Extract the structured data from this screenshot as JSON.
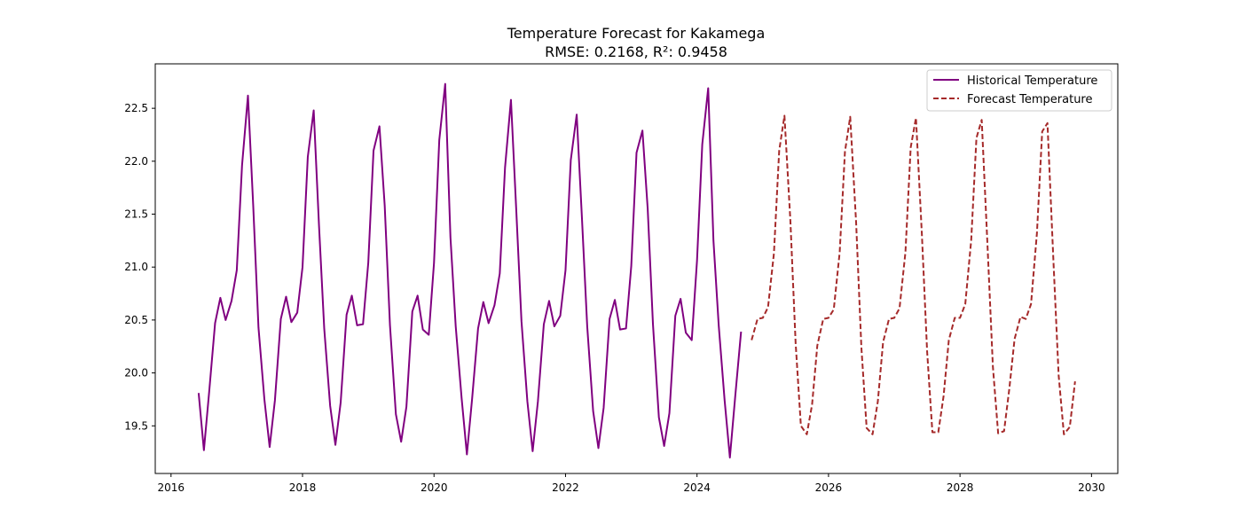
{
  "chart_data": {
    "type": "line",
    "title": "Temperature Forecast for Kakamega",
    "subtitle": "RMSE: 0.2168, R²: 0.9458",
    "xlabel": "",
    "ylabel": "",
    "xlim": [
      2015.76,
      2030.4
    ],
    "ylim": [
      19.05,
      22.92
    ],
    "xticks": [
      "2016",
      "2018",
      "2020",
      "2022",
      "2024",
      "2026",
      "2028",
      "2030"
    ],
    "yticks": [
      "19.5",
      "20.0",
      "20.5",
      "21.0",
      "21.5",
      "22.0",
      "22.5"
    ],
    "grid": false,
    "legend_position": "top-right",
    "series": [
      {
        "name": "Historical Temperature",
        "color": "#800080",
        "dash": "solid",
        "points": [
          [
            2016.42,
            19.81
          ],
          [
            2016.5,
            19.27
          ],
          [
            2016.58,
            19.82
          ],
          [
            2016.67,
            20.47
          ],
          [
            2016.75,
            20.71
          ],
          [
            2016.83,
            20.5
          ],
          [
            2016.92,
            20.68
          ],
          [
            2017.0,
            20.97
          ],
          [
            2017.08,
            21.96
          ],
          [
            2017.17,
            22.62
          ],
          [
            2017.25,
            21.58
          ],
          [
            2017.33,
            20.43
          ],
          [
            2017.42,
            19.75
          ],
          [
            2017.5,
            19.3
          ],
          [
            2017.58,
            19.74
          ],
          [
            2017.67,
            20.51
          ],
          [
            2017.75,
            20.72
          ],
          [
            2017.83,
            20.48
          ],
          [
            2017.92,
            20.57
          ],
          [
            2018.0,
            21.0
          ],
          [
            2018.08,
            22.04
          ],
          [
            2018.17,
            22.48
          ],
          [
            2018.25,
            21.4
          ],
          [
            2018.33,
            20.42
          ],
          [
            2018.42,
            19.69
          ],
          [
            2018.5,
            19.32
          ],
          [
            2018.58,
            19.72
          ],
          [
            2018.67,
            20.55
          ],
          [
            2018.75,
            20.73
          ],
          [
            2018.83,
            20.45
          ],
          [
            2018.92,
            20.46
          ],
          [
            2019.0,
            21.04
          ],
          [
            2019.08,
            22.1
          ],
          [
            2019.17,
            22.33
          ],
          [
            2019.25,
            21.58
          ],
          [
            2019.33,
            20.45
          ],
          [
            2019.42,
            19.61
          ],
          [
            2019.5,
            19.35
          ],
          [
            2019.58,
            19.68
          ],
          [
            2019.67,
            20.58
          ],
          [
            2019.75,
            20.73
          ],
          [
            2019.83,
            20.41
          ],
          [
            2019.92,
            20.36
          ],
          [
            2020.0,
            21.04
          ],
          [
            2020.08,
            22.2
          ],
          [
            2020.17,
            22.73
          ],
          [
            2020.25,
            21.28
          ],
          [
            2020.33,
            20.44
          ],
          [
            2020.42,
            19.76
          ],
          [
            2020.5,
            19.23
          ],
          [
            2020.58,
            19.76
          ],
          [
            2020.67,
            20.42
          ],
          [
            2020.75,
            20.67
          ],
          [
            2020.83,
            20.47
          ],
          [
            2020.92,
            20.64
          ],
          [
            2021.0,
            20.94
          ],
          [
            2021.08,
            21.94
          ],
          [
            2021.17,
            22.58
          ],
          [
            2021.25,
            21.55
          ],
          [
            2021.33,
            20.49
          ],
          [
            2021.42,
            19.73
          ],
          [
            2021.5,
            19.26
          ],
          [
            2021.58,
            19.73
          ],
          [
            2021.67,
            20.46
          ],
          [
            2021.75,
            20.68
          ],
          [
            2021.83,
            20.44
          ],
          [
            2021.92,
            20.54
          ],
          [
            2022.0,
            20.97
          ],
          [
            2022.08,
            22.01
          ],
          [
            2022.17,
            22.44
          ],
          [
            2022.25,
            21.46
          ],
          [
            2022.33,
            20.44
          ],
          [
            2022.42,
            19.64
          ],
          [
            2022.5,
            19.29
          ],
          [
            2022.58,
            19.67
          ],
          [
            2022.67,
            20.51
          ],
          [
            2022.75,
            20.69
          ],
          [
            2022.83,
            20.41
          ],
          [
            2022.92,
            20.42
          ],
          [
            2023.0,
            21.01
          ],
          [
            2023.08,
            22.08
          ],
          [
            2023.17,
            22.29
          ],
          [
            2023.25,
            21.55
          ],
          [
            2023.33,
            20.46
          ],
          [
            2023.42,
            19.58
          ],
          [
            2023.5,
            19.31
          ],
          [
            2023.58,
            19.62
          ],
          [
            2023.67,
            20.54
          ],
          [
            2023.75,
            20.7
          ],
          [
            2023.83,
            20.38
          ],
          [
            2023.92,
            20.31
          ],
          [
            2024.0,
            21.06
          ],
          [
            2024.08,
            22.16
          ],
          [
            2024.17,
            22.69
          ],
          [
            2024.25,
            21.25
          ],
          [
            2024.33,
            20.45
          ],
          [
            2024.42,
            19.74
          ],
          [
            2024.5,
            19.2
          ],
          [
            2024.58,
            19.77
          ],
          [
            2024.67,
            20.39
          ]
        ]
      },
      {
        "name": "Forecast Temperature",
        "color": "#a52a2a",
        "dash": "dashed",
        "points": [
          [
            2024.83,
            20.31
          ],
          [
            2024.92,
            20.51
          ],
          [
            2025.0,
            20.52
          ],
          [
            2025.08,
            20.62
          ],
          [
            2025.17,
            21.13
          ],
          [
            2025.25,
            22.1
          ],
          [
            2025.33,
            22.43
          ],
          [
            2025.42,
            21.44
          ],
          [
            2025.5,
            20.28
          ],
          [
            2025.58,
            19.5
          ],
          [
            2025.67,
            19.42
          ],
          [
            2025.75,
            19.7
          ],
          [
            2025.83,
            20.26
          ],
          [
            2025.92,
            20.51
          ],
          [
            2026.0,
            20.52
          ],
          [
            2026.08,
            20.6
          ],
          [
            2026.17,
            21.14
          ],
          [
            2026.25,
            22.09
          ],
          [
            2026.33,
            22.42
          ],
          [
            2026.42,
            21.42
          ],
          [
            2026.5,
            20.24
          ],
          [
            2026.58,
            19.48
          ],
          [
            2026.67,
            19.42
          ],
          [
            2026.75,
            19.73
          ],
          [
            2026.83,
            20.29
          ],
          [
            2026.92,
            20.51
          ],
          [
            2027.0,
            20.52
          ],
          [
            2027.08,
            20.61
          ],
          [
            2027.17,
            21.14
          ],
          [
            2027.25,
            22.13
          ],
          [
            2027.33,
            22.41
          ],
          [
            2027.42,
            21.31
          ],
          [
            2027.5,
            20.2
          ],
          [
            2027.58,
            19.44
          ],
          [
            2027.67,
            19.44
          ],
          [
            2027.75,
            19.78
          ],
          [
            2027.83,
            20.31
          ],
          [
            2027.92,
            20.52
          ],
          [
            2028.0,
            20.52
          ],
          [
            2028.08,
            20.65
          ],
          [
            2028.17,
            21.25
          ],
          [
            2028.25,
            22.22
          ],
          [
            2028.33,
            22.39
          ],
          [
            2028.42,
            21.18
          ],
          [
            2028.5,
            20.06
          ],
          [
            2028.58,
            19.43
          ],
          [
            2028.67,
            19.45
          ],
          [
            2028.75,
            19.85
          ],
          [
            2028.83,
            20.32
          ],
          [
            2028.92,
            20.53
          ],
          [
            2029.0,
            20.51
          ],
          [
            2029.08,
            20.65
          ],
          [
            2029.17,
            21.32
          ],
          [
            2029.25,
            22.28
          ],
          [
            2029.33,
            22.36
          ],
          [
            2029.42,
            21.07
          ],
          [
            2029.5,
            19.98
          ],
          [
            2029.58,
            19.42
          ],
          [
            2029.67,
            19.49
          ],
          [
            2029.75,
            19.92
          ]
        ]
      }
    ]
  }
}
